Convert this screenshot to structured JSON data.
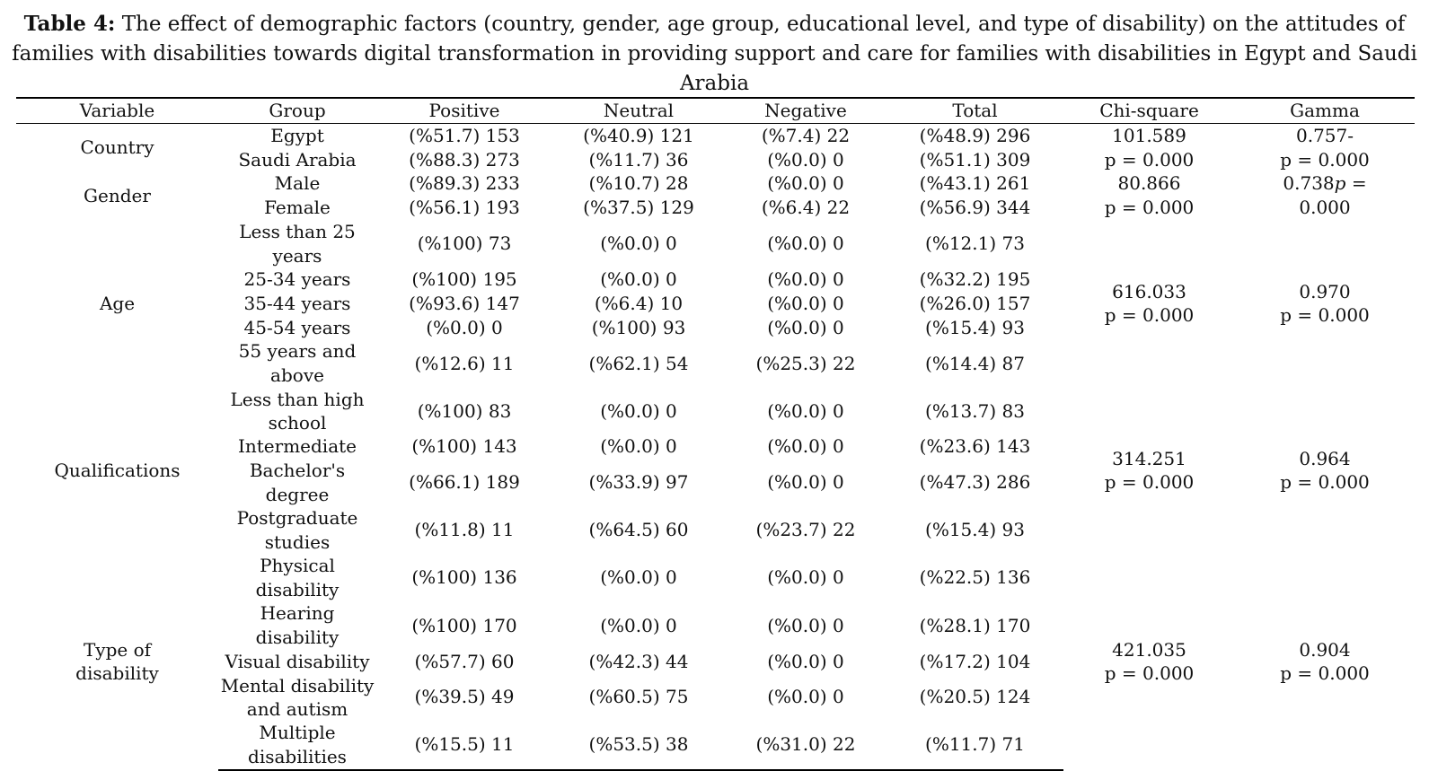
{
  "caption": {
    "label": "Table 4:",
    "text": "The effect of demographic factors (country, gender, age group, educational level, and type of disability) on the attitudes of families with disabilities towards digital transformation in providing support and care for families with disabilities in Egypt and Saudi Arabia"
  },
  "headers": [
    "Variable",
    "Group",
    "Positive",
    "Neutral",
    "Negative",
    "Total",
    "Chi-square",
    "Gamma"
  ],
  "variables": {
    "country": {
      "label": "Country",
      "chi_value": "101.589",
      "chi_p": "p = 0.000",
      "gamma_value": "0.757-",
      "gamma_p": "p = 0.000",
      "rows": [
        {
          "group": "Egypt",
          "positive": "(%51.7) 153",
          "neutral": "(%40.9) 121",
          "negative": "(%7.4) 22",
          "total": "(%48.9) 296"
        },
        {
          "group": "Saudi Arabia",
          "positive": "(%88.3) 273",
          "neutral": "(%11.7) 36",
          "negative": "(%0.0) 0",
          "total": "(%51.1) 309"
        }
      ]
    },
    "gender": {
      "label": "Gender",
      "chi_value": "80.866",
      "chi_p": "p = 0.000",
      "gamma_value": "0.738",
      "gamma_p_italic": "p",
      "gamma_p_rest": " =",
      "gamma_p2": "0.000",
      "rows": [
        {
          "group": "Male",
          "positive": "(%89.3) 233",
          "neutral": "(%10.7) 28",
          "negative": "(%0.0) 0",
          "total": "(%43.1) 261"
        },
        {
          "group": "Female",
          "positive": "(%56.1) 193",
          "neutral": "(%37.5) 129",
          "negative": "(%6.4) 22",
          "total": "(%56.9) 344"
        }
      ]
    },
    "age": {
      "label": "Age",
      "chi_value": "616.033",
      "chi_p": "p = 0.000",
      "gamma_value": "0.970",
      "gamma_p": "p = 0.000",
      "rows": [
        {
          "group": "Less than 25 years",
          "positive": "(%100) 73",
          "neutral": "(%0.0) 0",
          "negative": "(%0.0) 0",
          "total": "(%12.1) 73"
        },
        {
          "group": "25-34 years",
          "positive": "(%100) 195",
          "neutral": "(%0.0) 0",
          "negative": "(%0.0) 0",
          "total": "(%32.2) 195"
        },
        {
          "group": "35-44 years",
          "positive": "(%93.6) 147",
          "neutral": "(%6.4) 10",
          "negative": "(%0.0) 0",
          "total": "(%26.0) 157"
        },
        {
          "group": "45-54 years",
          "positive": "(%0.0) 0",
          "neutral": "(%100) 93",
          "negative": "(%0.0) 0",
          "total": "(%15.4) 93"
        },
        {
          "group": "55 years and above",
          "positive": "(%12.6) 11",
          "neutral": "(%62.1) 54",
          "negative": "(%25.3) 22",
          "total": "(%14.4) 87"
        }
      ]
    },
    "qualifications": {
      "label": "Qualifications",
      "chi_value": "314.251",
      "chi_p": "p = 0.000",
      "gamma_value": "0.964",
      "gamma_p": "p = 0.000",
      "rows": [
        {
          "group_l1": "Less than high",
          "group_l2": "school",
          "positive": "(%100) 83",
          "neutral": "(%0.0) 0",
          "negative": "(%0.0) 0",
          "total": "(%13.7) 83"
        },
        {
          "group": "Intermediate",
          "positive": "(%100) 143",
          "neutral": "(%0.0) 0",
          "negative": "(%0.0) 0",
          "total": "(%23.6) 143"
        },
        {
          "group": "Bachelor's degree",
          "positive": "(%66.1) 189",
          "neutral": "(%33.9) 97",
          "negative": "(%0.0) 0",
          "total": "(%47.3) 286"
        },
        {
          "group_l1": "Postgraduate",
          "group_l2": "studies",
          "positive": "(%11.8) 11",
          "neutral": "(%64.5) 60",
          "negative": "(%23.7) 22",
          "total": "(%15.4) 93"
        }
      ]
    },
    "disability": {
      "label_l1": "Type of",
      "label_l2": "disability",
      "chi_value": "421.035",
      "chi_p": "p = 0.000",
      "gamma_value": "0.904",
      "gamma_p": "p = 0.000",
      "rows": [
        {
          "group": "Physical disability",
          "positive": "(%100) 136",
          "neutral": "(%0.0) 0",
          "negative": "(%0.0) 0",
          "total": "(%22.5) 136"
        },
        {
          "group": "Hearing disability",
          "positive": "(%100) 170",
          "neutral": "(%0.0) 0",
          "negative": "(%0.0) 0",
          "total": "(%28.1) 170"
        },
        {
          "group": "Visual disability",
          "positive": "(%57.7) 60",
          "neutral": "(%42.3) 44",
          "negative": "(%0.0) 0",
          "total": "(%17.2) 104"
        },
        {
          "group_l1": "Mental disability",
          "group_l2": "and autism",
          "positive": "(%39.5) 49",
          "neutral": "(%60.5) 75",
          "negative": "(%0.0) 0",
          "total": "(%20.5) 124"
        },
        {
          "group": "Multiple disabilities",
          "positive": "(%15.5) 11",
          "neutral": "(%53.5) 38",
          "negative": "(%31.0) 22",
          "total": "(%11.7) 71"
        }
      ]
    }
  }
}
